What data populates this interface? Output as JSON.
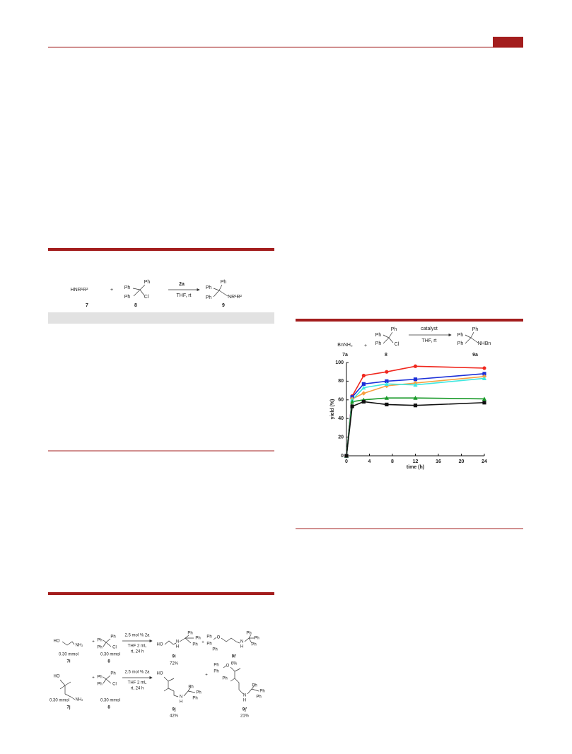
{
  "scheme_1": {
    "labels": [
      "HNR¹R²",
      "+",
      "Ph",
      "Ph",
      "Ph",
      "Cl",
      "2a",
      "THF, rt",
      "Ph",
      "Ph",
      "Ph",
      "NR¹R²",
      "7",
      "8",
      "9"
    ]
  },
  "scheme_2": {
    "labels": [
      "BnNH₂",
      "+",
      "Ph",
      "Ph",
      "Ph",
      "Cl",
      "catalyst",
      "THF, rt",
      "Ph",
      "Ph",
      "Ph",
      "NHBn",
      "7a",
      "8",
      "9a"
    ]
  },
  "chart_data": {
    "type": "line",
    "xlabel": "time (h)",
    "ylabel": "yield (%)",
    "xlim": [
      0,
      24
    ],
    "ylim": [
      0,
      100
    ],
    "xticks": [
      0,
      4,
      8,
      12,
      16,
      20,
      24
    ],
    "yticks": [
      0,
      20,
      40,
      60,
      80,
      100
    ],
    "x": [
      0,
      1,
      3,
      7,
      12,
      24
    ],
    "series": [
      {
        "color": "#f0281e",
        "marker": "circle",
        "values": [
          0,
          64,
          86,
          90,
          96,
          94
        ]
      },
      {
        "color": "#1c2fd8",
        "marker": "square",
        "values": [
          0,
          63,
          77,
          80,
          82,
          88
        ]
      },
      {
        "color": "#f7a040",
        "marker": "diamond",
        "values": [
          0,
          61,
          67,
          75,
          78,
          85
        ]
      },
      {
        "color": "#3ee8e0",
        "marker": "triangle",
        "values": [
          0,
          60,
          73,
          77,
          76,
          83
        ]
      },
      {
        "color": "#1a9a2a",
        "marker": "triangle",
        "values": [
          0,
          58,
          60,
          62,
          62,
          61
        ]
      },
      {
        "color": "#111111",
        "marker": "square",
        "values": [
          0,
          53,
          58,
          55,
          54,
          57
        ]
      }
    ]
  },
  "scheme_3": {
    "labels": [
      "HO",
      "NH₂",
      "0.30 mmol",
      "7i",
      "+",
      "Ph",
      "Ph",
      "Ph",
      "Cl",
      "0.30 mmol",
      "8",
      "2.5 mol % 2a",
      "THF 2 mL",
      "rt, 24 h",
      "HO",
      "N",
      "H",
      "Ph",
      "Ph",
      "Ph",
      "9i",
      "72%",
      "+",
      "Ph",
      "O",
      "Ph",
      "Ph",
      "N",
      "H",
      "Ph",
      "Ph",
      "Ph",
      "9i'",
      "6%",
      "HO",
      "NH₂",
      "0.30 mmol",
      "7j",
      "+",
      "Ph",
      "Ph",
      "Ph",
      "Cl",
      "0.30 mmol",
      "8",
      "2.5 mol % 2a",
      "THF 2 mL",
      "rt, 24 h",
      "HO",
      "N",
      "H",
      "Ph",
      "Ph",
      "Ph",
      "9j",
      "42%",
      "+",
      "Ph",
      "Ph",
      "O",
      "Ph",
      "N",
      "H",
      "Ph",
      "Ph",
      "Ph",
      "9j'",
      "21%"
    ]
  }
}
